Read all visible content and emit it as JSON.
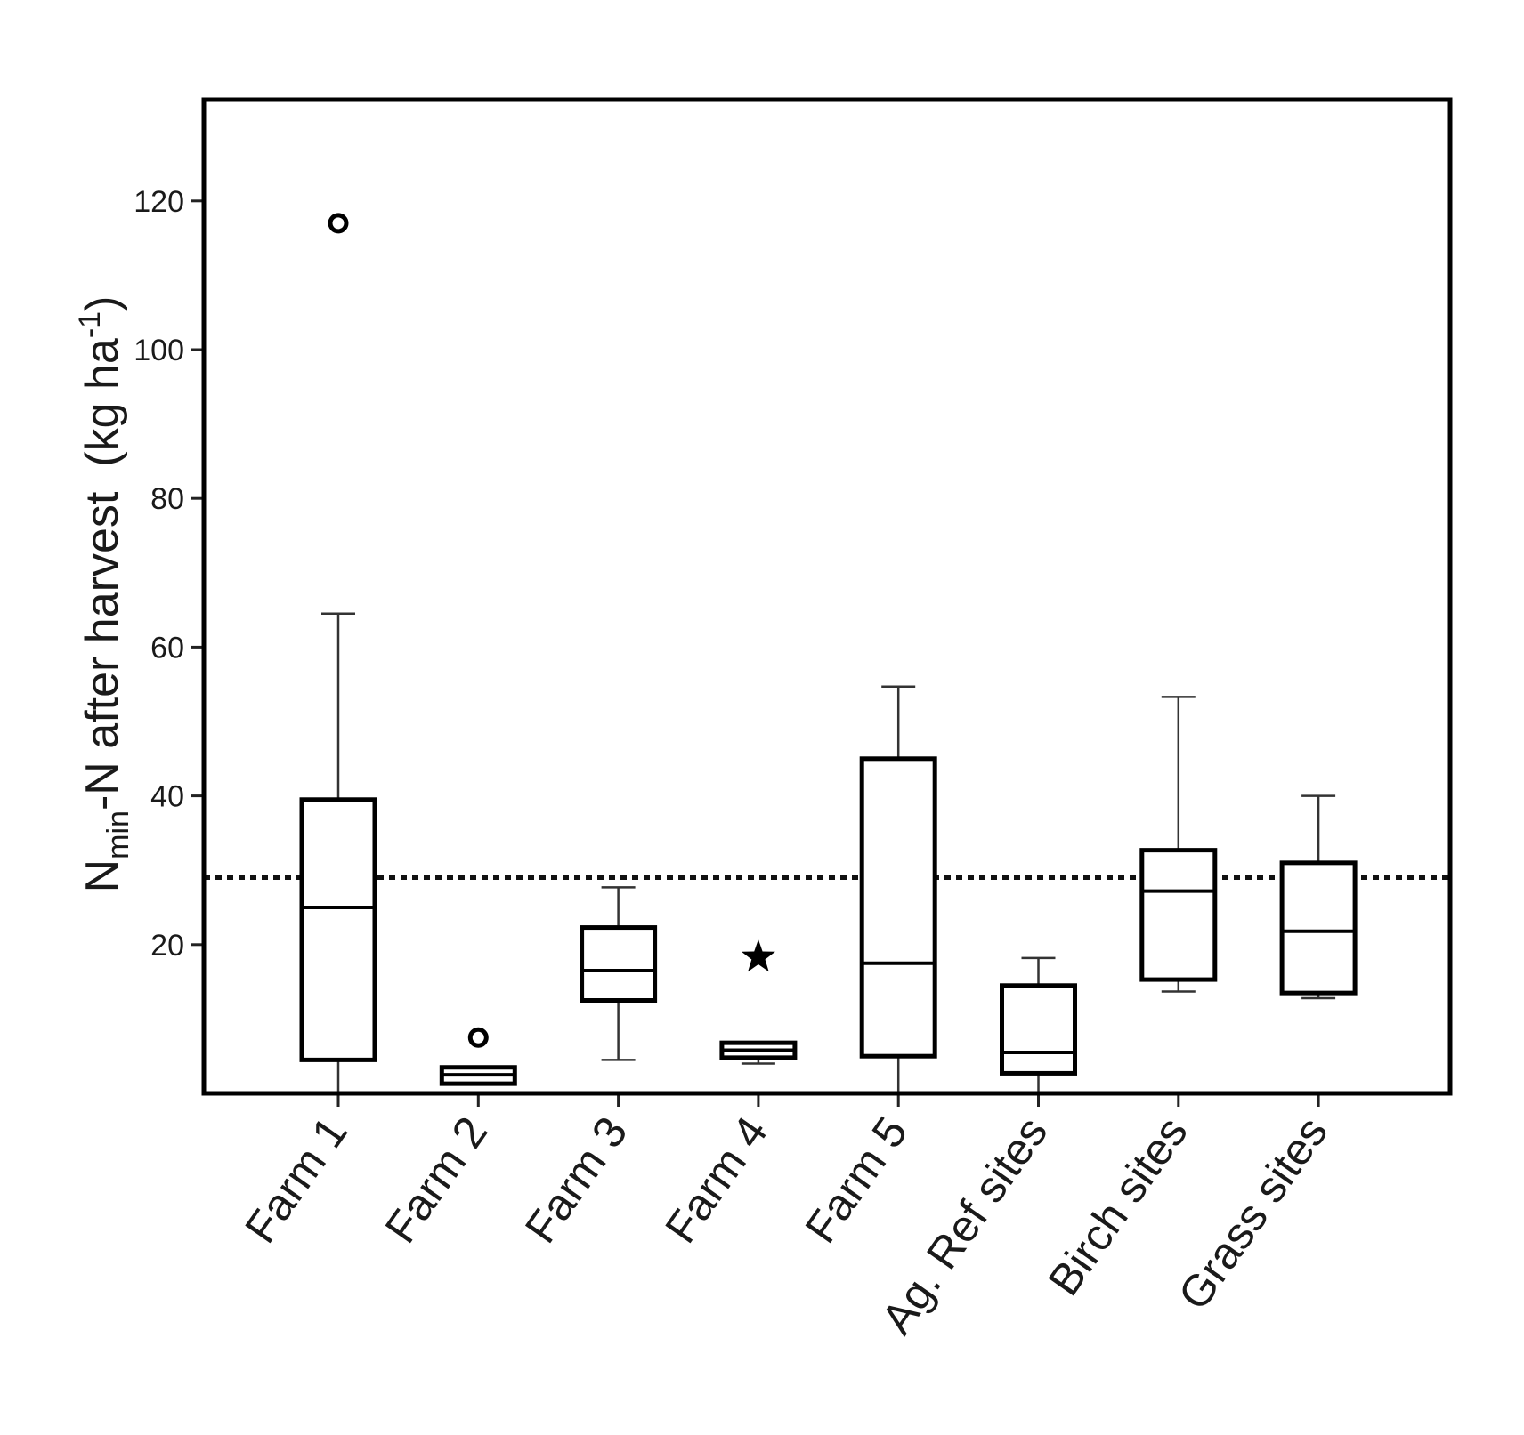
{
  "chart_data": {
    "type": "box",
    "title": "",
    "xlabel": "",
    "ylabel": {
      "main": "N",
      "subscript": "min",
      "rest": "-N after harvest",
      "units_open": "(kg ha",
      "units_sup": "-1",
      "units_close": ")"
    },
    "ylim": [
      0,
      130
    ],
    "yticks": [
      20,
      40,
      60,
      80,
      100,
      120
    ],
    "grid": false,
    "reference_line": {
      "value": 29,
      "style": "dotted"
    },
    "categories": [
      "Farm 1",
      "Farm 2",
      "Farm 3",
      "Farm 4",
      "Farm 5",
      "Ag. Ref sites",
      "Birch sites",
      "Grass sites"
    ],
    "boxes": [
      {
        "category": "Farm 1",
        "whisker_low": 0,
        "q1": 4.5,
        "median": 25,
        "q3": 39.5,
        "whisker_high": 64.5,
        "outliers": [
          {
            "value": 117,
            "marker": "circle"
          }
        ]
      },
      {
        "category": "Farm 2",
        "whisker_low": 1.2,
        "q1": 1.3,
        "median": 2.5,
        "q3": 3.5,
        "whisker_high": 3.6,
        "outliers": [
          {
            "value": 7.5,
            "marker": "circle"
          }
        ]
      },
      {
        "category": "Farm 3",
        "whisker_low": 4.5,
        "q1": 12.5,
        "median": 16.5,
        "q3": 22.3,
        "whisker_high": 27.7,
        "outliers": []
      },
      {
        "category": "Farm 4",
        "whisker_low": 4,
        "q1": 4.8,
        "median": 5.8,
        "q3": 6.8,
        "whisker_high": 6.9,
        "outliers": [
          {
            "value": 18.3,
            "marker": "star"
          }
        ]
      },
      {
        "category": "Farm 5",
        "whisker_low": 0,
        "q1": 5,
        "median": 17.5,
        "q3": 45,
        "whisker_high": 54.7,
        "outliers": []
      },
      {
        "category": "Ag. Ref sites",
        "whisker_low": 0,
        "q1": 2.7,
        "median": 5.5,
        "q3": 14.5,
        "whisker_high": 18.2,
        "outliers": []
      },
      {
        "category": "Birch sites",
        "whisker_low": 13.7,
        "q1": 15.3,
        "median": 27.2,
        "q3": 32.7,
        "whisker_high": 53.3,
        "outliers": []
      },
      {
        "category": "Grass sites",
        "whisker_low": 12.8,
        "q1": 13.5,
        "median": 21.8,
        "q3": 31,
        "whisker_high": 40,
        "outliers": []
      }
    ]
  }
}
